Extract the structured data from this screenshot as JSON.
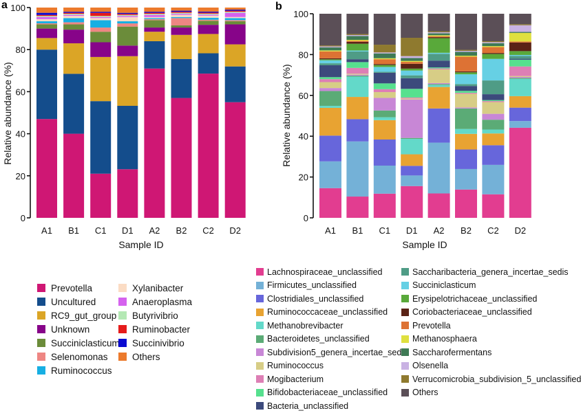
{
  "chart_data": [
    {
      "panel": "a",
      "type": "bar",
      "stacked": true,
      "title": "",
      "xlabel": "Sample ID",
      "ylabel": "Relative abundance (%)",
      "ylim": [
        0,
        100
      ],
      "yticks": [
        0,
        20,
        40,
        60,
        80,
        100
      ],
      "categories": [
        "A1",
        "B1",
        "C1",
        "D1",
        "A2",
        "B2",
        "C2",
        "D2"
      ],
      "legend_position": "bottom-left",
      "series": [
        {
          "name": "Prevotella",
          "color": "#cf1774",
          "values": [
            47,
            40,
            21,
            23,
            71,
            57,
            71,
            55
          ]
        },
        {
          "name": "Uncultured",
          "color": "#144d8c",
          "values": [
            33,
            28.5,
            34.5,
            30,
            13,
            18.5,
            10,
            17
          ]
        },
        {
          "name": "RC9_gut_group",
          "color": "#dba526",
          "values": [
            5.5,
            14.5,
            21,
            23.5,
            4.5,
            11.5,
            9.5,
            10.5
          ]
        },
        {
          "name": "Unknown",
          "color": "#870489",
          "values": [
            4.5,
            6.5,
            7,
            5,
            2,
            3.5,
            4.5,
            9.5
          ]
        },
        {
          "name": "Succiniclasticum",
          "color": "#6b8c3a",
          "values": [
            2,
            2.5,
            5,
            9,
            3.5,
            1,
            2,
            1.5
          ]
        },
        {
          "name": "Selenomonas",
          "color": "#ee8683",
          "values": [
            0.5,
            1,
            2,
            1.5,
            0.5,
            3.5,
            0.5,
            0.5
          ]
        },
        {
          "name": "Ruminococcus",
          "color": "#17afe3",
          "values": [
            1,
            2,
            3.5,
            1,
            0.5,
            0.5,
            1,
            1
          ]
        },
        {
          "name": "Xylanibacter",
          "color": "#fbdcc4",
          "values": [
            1,
            1,
            1,
            2,
            0.5,
            1,
            1,
            0.5
          ]
        },
        {
          "name": "Anaeroplasma",
          "color": "#d562ee",
          "values": [
            1,
            0.5,
            0.5,
            0.5,
            1,
            0.5,
            0.5,
            2
          ]
        },
        {
          "name": "Butyrivibrio",
          "color": "#b4e8b4",
          "values": [
            0.5,
            0.5,
            0.5,
            0.5,
            0.5,
            0.5,
            0.5,
            0.5
          ]
        },
        {
          "name": "Ruminobacter",
          "color": "#e51b1b",
          "values": [
            0.5,
            0.5,
            1.5,
            0.5,
            0.5,
            0.5,
            0.5,
            0.5
          ]
        },
        {
          "name": "Succinivibrio",
          "color": "#0a0ad1",
          "values": [
            1,
            0.5,
            0.5,
            0.5,
            0.5,
            0.5,
            0.5,
            0.5
          ]
        },
        {
          "name": "Others",
          "color": "#ec7a2c",
          "values": [
            2.5,
            2,
            2,
            2.5,
            2,
            1.5,
            2,
            1
          ]
        }
      ]
    },
    {
      "panel": "b",
      "type": "bar",
      "stacked": true,
      "title": "",
      "xlabel": "Sample ID",
      "ylabel": "Relative abundance (%)",
      "ylim": [
        0,
        100
      ],
      "yticks": [
        0,
        20,
        40,
        60,
        80,
        100
      ],
      "categories": [
        "A1",
        "B1",
        "C1",
        "D1",
        "A2",
        "B2",
        "C2",
        "D2"
      ],
      "legend_position": "bottom",
      "series": [
        {
          "name": "Lachnospiraceae_unclassified",
          "color": "#e23d90",
          "values": [
            15,
            11,
            12.5,
            16.5,
            12.5,
            14.5,
            12,
            47
          ]
        },
        {
          "name": "Firmicutes_unclassified",
          "color": "#74b1d7",
          "values": [
            13.5,
            28.5,
            14.5,
            5.5,
            26,
            10.5,
            15,
            3.5
          ]
        },
        {
          "name": "Clostridiales_unclassified",
          "color": "#6766db",
          "values": [
            13,
            11.5,
            13.5,
            5,
            17.5,
            10,
            10,
            7
          ]
        },
        {
          "name": "Ruminococcaceae_unclassified",
          "color": "#e8a332",
          "values": [
            14,
            11.5,
            10,
            6,
            11,
            8,
            6,
            6
          ]
        },
        {
          "name": "Methanobrevibacter",
          "color": "#63d9c9",
          "values": [
            1,
            10.5,
            1.5,
            8,
            1,
            2.5,
            2,
            9
          ]
        },
        {
          "name": "Bacteroidetes_unclassified",
          "color": "#5bab76",
          "values": [
            7.5,
            0.5,
            3.5,
            0.5,
            0.5,
            10.5,
            5,
            0.5
          ]
        },
        {
          "name": "Subdivision5_genera_incertae_sedis",
          "color": "#c887d6",
          "values": [
            1.5,
            0.5,
            6.5,
            20,
            0.5,
            0.5,
            3,
            0.5
          ]
        },
        {
          "name": "Ruminococcus",
          "color": "#d7cd86",
          "values": [
            3,
            0.5,
            3,
            0.5,
            7,
            7,
            6,
            0.5
          ]
        },
        {
          "name": "Mogibacterium",
          "color": "#dd7fb5",
          "values": [
            1.5,
            3,
            1.5,
            0.5,
            0.5,
            0.5,
            0.5,
            5
          ]
        },
        {
          "name": "Bifidobacteriaceae_unclassified",
          "color": "#56e08e",
          "values": [
            1,
            3,
            3,
            4.5,
            0.5,
            1,
            0.5,
            3.5
          ]
        },
        {
          "name": "Bacteria_unclassified",
          "color": "#3c4a7c",
          "values": [
            6,
            1.5,
            5.5,
            5.5,
            3.5,
            2.5,
            3,
            0.5
          ]
        },
        {
          "name": "Saccharibacteria_genera_incertae_sedis",
          "color": "#4f9c86",
          "values": [
            1,
            4,
            0.5,
            1.5,
            3.5,
            1,
            7,
            1.5
          ]
        },
        {
          "name": "Succiniclasticum",
          "color": "#66d0e4",
          "values": [
            1.5,
            0.5,
            2.5,
            2.5,
            0.5,
            5,
            11,
            0.5
          ]
        },
        {
          "name": "Erysipelotrichaceae_unclassified",
          "color": "#59a93a",
          "values": [
            0.5,
            3.5,
            1,
            1,
            7.5,
            1,
            2.5,
            2
          ]
        },
        {
          "name": "Coriobacteriaceae_unclassified",
          "color": "#5a2316",
          "values": [
            0.5,
            1,
            0.5,
            2.5,
            0.5,
            0.5,
            0.5,
            4.5
          ]
        },
        {
          "name": "Prevotella",
          "color": "#dd7234",
          "values": [
            3.5,
            0.5,
            2.5,
            1,
            0.5,
            7.5,
            3,
            0.5
          ]
        },
        {
          "name": "Methanosphaera",
          "color": "#dfe03f",
          "values": [
            0.5,
            0.5,
            0.5,
            0.5,
            0.5,
            0.5,
            0.5,
            4.5
          ]
        },
        {
          "name": "Saccharofermentans",
          "color": "#3f7a55",
          "values": [
            1.5,
            2,
            2.5,
            1.5,
            1,
            2,
            1.5,
            0.5
          ]
        },
        {
          "name": "Olsenella",
          "color": "#c9b2e3",
          "values": [
            0.5,
            0.5,
            0.5,
            1,
            0.5,
            0.5,
            0.5,
            3.5
          ]
        },
        {
          "name": "Verrucomicrobia_subdivision_5_unclassified",
          "color": "#8f7a2f",
          "values": [
            0.5,
            0.5,
            4,
            9.5,
            0.5,
            0.5,
            0.5,
            0.5
          ]
        },
        {
          "name": "Others",
          "color": "#5b4f57",
          "values": [
            16,
            10.5,
            16,
            12.5,
            9,
            18.5,
            14,
            5.5
          ]
        }
      ]
    }
  ],
  "panels": {
    "a": {
      "label": "a"
    },
    "b": {
      "label": "b"
    }
  }
}
